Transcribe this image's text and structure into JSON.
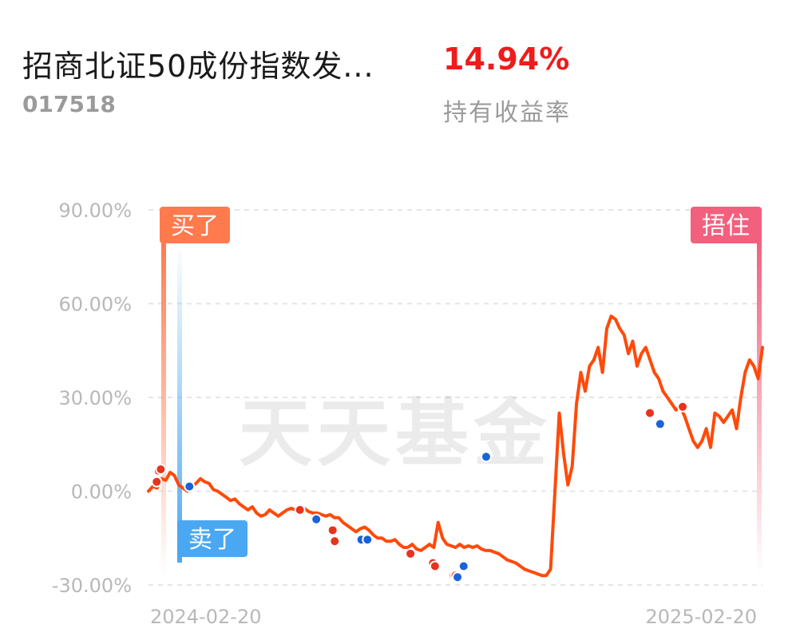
{
  "header": {
    "fund_name": "招商北证50成份指数发...",
    "fund_code": "017518",
    "return_value": "14.94%",
    "return_label": "持有收益率"
  },
  "watermark": "天天基金",
  "markers": {
    "buy_label": "买了",
    "sell_label": "卖了",
    "hold_label": "捂住"
  },
  "colors": {
    "line": "#ff4a0a",
    "buy_dot": "#e8331e",
    "sell_dot": "#1a62d8",
    "buy_badge": "#ff7a4d",
    "sell_badge": "#4aa7f2",
    "hold_badge": "#f2607d",
    "return_positive": "#ee1c1c"
  },
  "chart_data": {
    "type": "line",
    "ylim": [
      -30,
      90
    ],
    "yticks": [
      "90.00%",
      "60.00%",
      "30.00%",
      "0.00%",
      "-30.00%"
    ],
    "xticks": [
      "2024-02-20",
      "2025-02-20"
    ],
    "grid": true,
    "xlabel": "",
    "ylabel": "",
    "series": [
      {
        "values": [
          0,
          1.5,
          1,
          4,
          3.5,
          6,
          5,
          2,
          1,
          0,
          1.5,
          2.5,
          4,
          3,
          2.5,
          0.5,
          0,
          -1,
          -2,
          -3,
          -2.5,
          -4,
          -5,
          -6,
          -5,
          -7,
          -8,
          -7.5,
          -6,
          -7,
          -8,
          -7,
          -6,
          -5.5,
          -6,
          -5,
          -5.5,
          -6.5,
          -7,
          -7,
          -7.5,
          -8,
          -7.5,
          -8.5,
          -8.5,
          -10,
          -11,
          -12,
          -13,
          -12,
          -11.5,
          -12.5,
          -14,
          -15,
          -15,
          -16,
          -16,
          -15.5,
          -17,
          -18,
          -18,
          -17,
          -18.5,
          -19,
          -18,
          -17,
          -18,
          -10,
          -15,
          -17,
          -17.5,
          -18,
          -17,
          -18,
          -17.5,
          -18,
          -17.5,
          -18.5,
          -19,
          -19,
          -19.5,
          -20,
          -21,
          -22,
          -22.5,
          -23,
          -24,
          -25,
          -25.5,
          -26,
          -26.5,
          -27,
          -27,
          -25,
          0,
          25,
          12,
          2,
          8,
          28,
          38,
          32,
          40,
          42,
          46,
          38,
          52,
          56,
          55,
          52,
          50,
          44,
          48,
          40,
          44,
          46,
          42,
          38,
          36,
          32,
          30,
          28,
          26,
          27,
          24,
          20,
          16,
          14,
          16,
          20,
          14,
          25,
          24,
          22,
          24,
          26,
          20,
          30,
          38,
          42,
          40,
          36,
          46
        ]
      }
    ],
    "buy_points": [
      [
        4,
        3
      ],
      [
        5,
        6.5
      ],
      [
        6,
        7
      ],
      [
        74,
        -6
      ],
      [
        90,
        -12.5
      ],
      [
        91,
        -16
      ],
      [
        128,
        -20
      ],
      [
        139,
        -23
      ],
      [
        140,
        -24
      ],
      [
        149,
        -27
      ],
      [
        150,
        -27
      ],
      [
        245,
        25
      ],
      [
        261,
        27
      ]
    ],
    "sell_points": [
      [
        20,
        1.5
      ],
      [
        82,
        -9
      ],
      [
        104,
        -15.5
      ],
      [
        107,
        -15.5
      ],
      [
        151,
        -27.5
      ],
      [
        154,
        -24
      ],
      [
        165,
        11
      ],
      [
        250,
        21.5
      ]
    ]
  }
}
